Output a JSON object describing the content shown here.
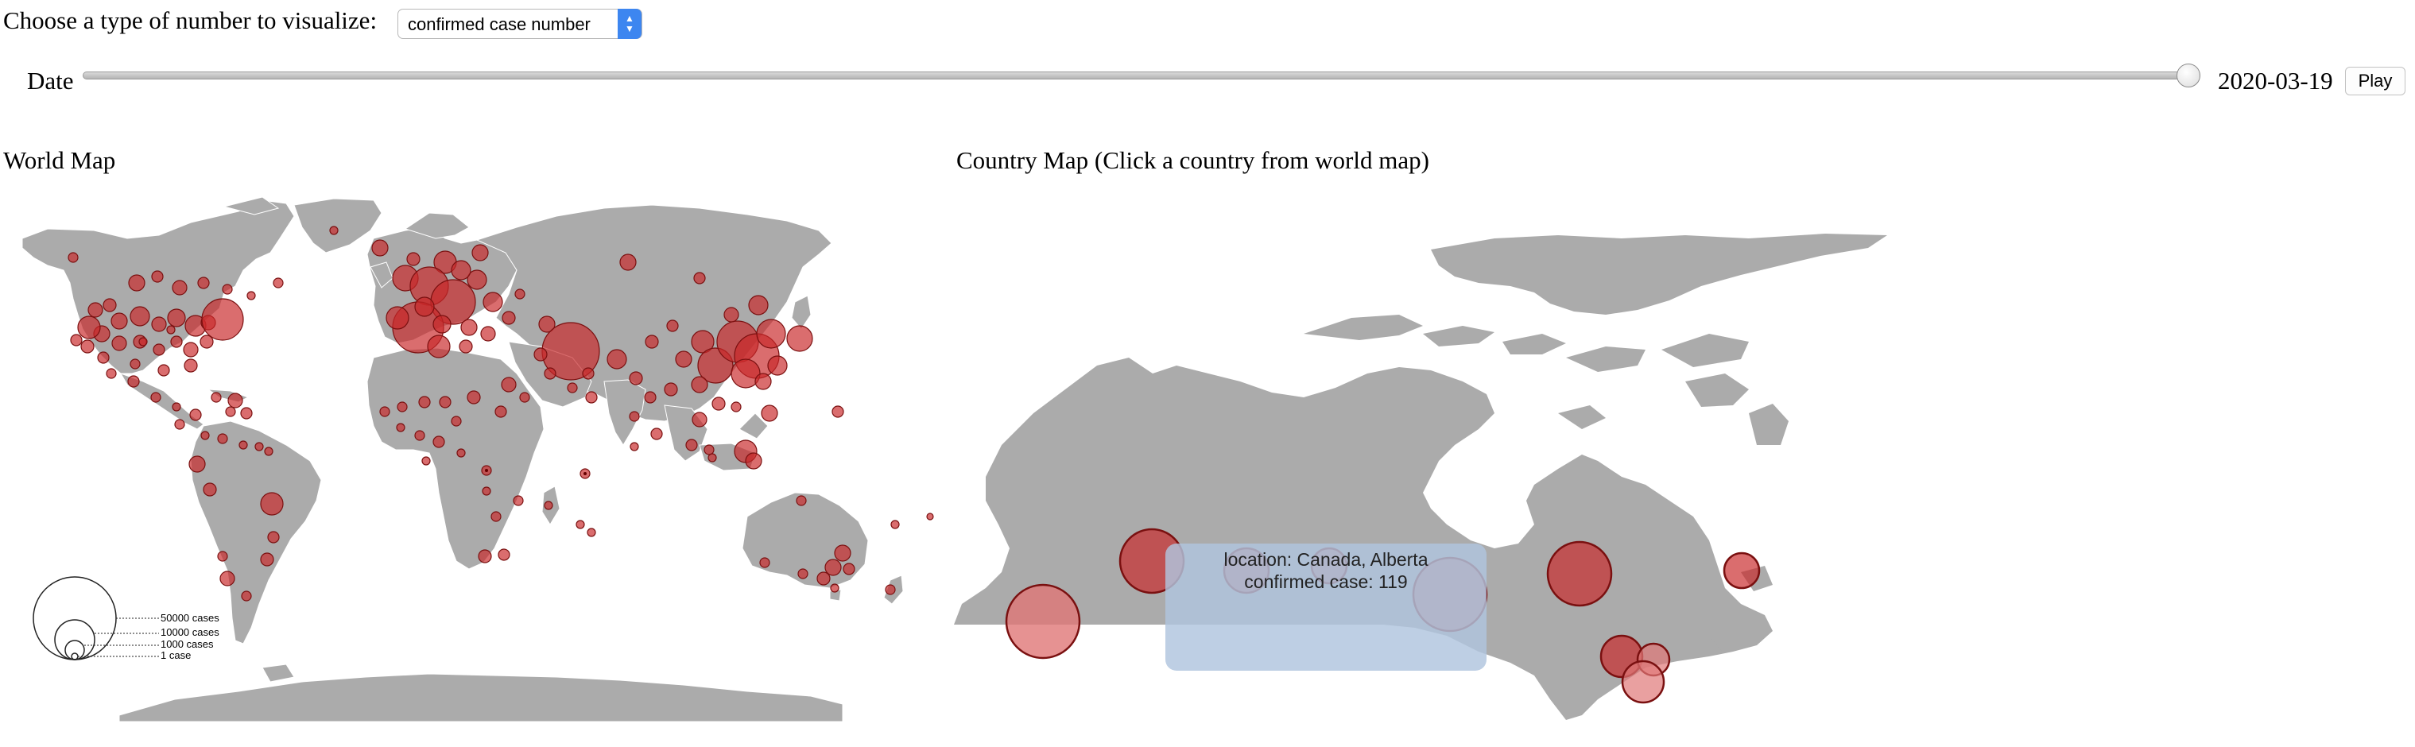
{
  "controls": {
    "type_label": "Choose a type of number to visualize:",
    "type_selected": "confirmed case number",
    "date_label": "Date",
    "date_value": "2020-03-19",
    "slider_position": 1.0,
    "play_label": "Play"
  },
  "world_map": {
    "title": "World Map",
    "legend": [
      "50000 cases",
      "10000 cases",
      "1000 cases",
      "1 case"
    ]
  },
  "country_map": {
    "title": "Country Map (Click a country from world map)"
  },
  "tooltip": {
    "location_line": "location: Canada, Alberta",
    "count_line": "confirmed case: 119"
  },
  "colors": {
    "land": "#ababab",
    "bubble_fill": "#c8282a",
    "bubble_stroke": "#7a1010",
    "tooltip_bg": "#b0c4de",
    "select_accent": "#3d86f0"
  }
}
